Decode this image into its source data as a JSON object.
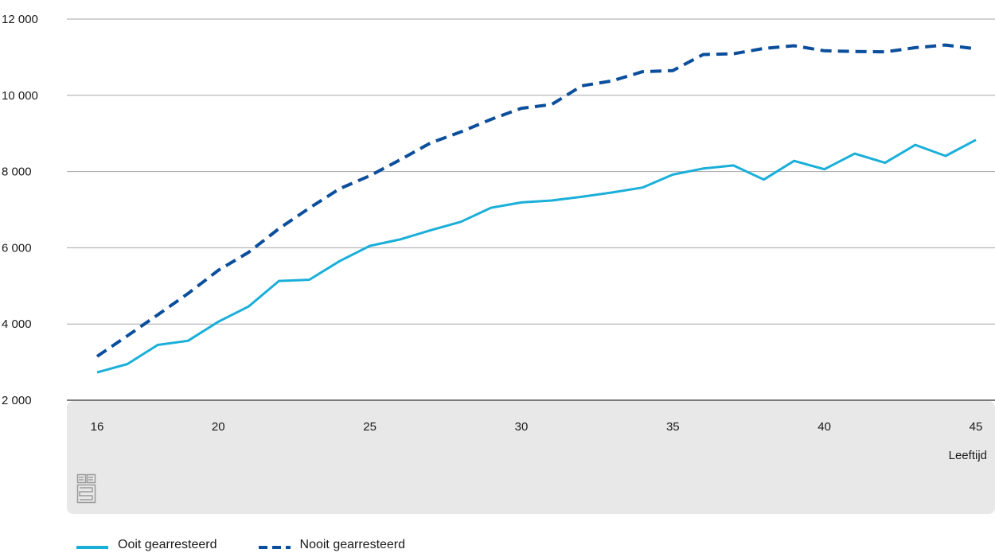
{
  "chart_data": {
    "type": "line",
    "xlabel": "Leeftijd",
    "ylabel": "",
    "title": "",
    "xlim": [
      16,
      45
    ],
    "ylim": [
      2000,
      12000
    ],
    "x_ticks": [
      16,
      20,
      25,
      30,
      35,
      40,
      45
    ],
    "y_ticks": [
      2000,
      4000,
      6000,
      8000,
      10000,
      12000
    ],
    "y_tick_labels": [
      "2 000",
      "4 000",
      "6 000",
      "8 000",
      "10 000",
      "12 000"
    ],
    "grid": true,
    "legend_placement": "bottom",
    "x": [
      16,
      17,
      18,
      19,
      20,
      21,
      22,
      23,
      24,
      25,
      26,
      27,
      28,
      29,
      30,
      31,
      32,
      33,
      34,
      35,
      36,
      37,
      38,
      39,
      40,
      41,
      42,
      43,
      44,
      45
    ],
    "series": [
      {
        "name": "Ooit gearresteerd",
        "style": "solid",
        "color": "#1aafd9",
        "values": [
          2730,
          2950,
          3450,
          3560,
          4060,
          4460,
          5130,
          5160,
          5650,
          6050,
          6220,
          6460,
          6680,
          7050,
          7190,
          7240,
          7340,
          7450,
          7580,
          7920,
          8080,
          8160,
          7790,
          8280,
          8060,
          8470,
          8230,
          8700,
          8410,
          8830
        ]
      },
      {
        "name": "Nooit gearresteerd",
        "style": "dashed",
        "color": "#0b4f9c",
        "values": [
          3150,
          3690,
          4240,
          4800,
          5410,
          5880,
          6500,
          7040,
          7550,
          7890,
          8310,
          8750,
          9040,
          9370,
          9660,
          9760,
          10250,
          10380,
          10620,
          10650,
          11070,
          11090,
          11230,
          11300,
          11170,
          11150,
          11140,
          11250,
          11320,
          11220
        ]
      }
    ]
  },
  "logo": {
    "name": "cbs-logo"
  },
  "colors": {
    "axis_band": "#e8e8e8",
    "grid": "#a6a6a6",
    "axis_line": "#7a7a7a"
  }
}
